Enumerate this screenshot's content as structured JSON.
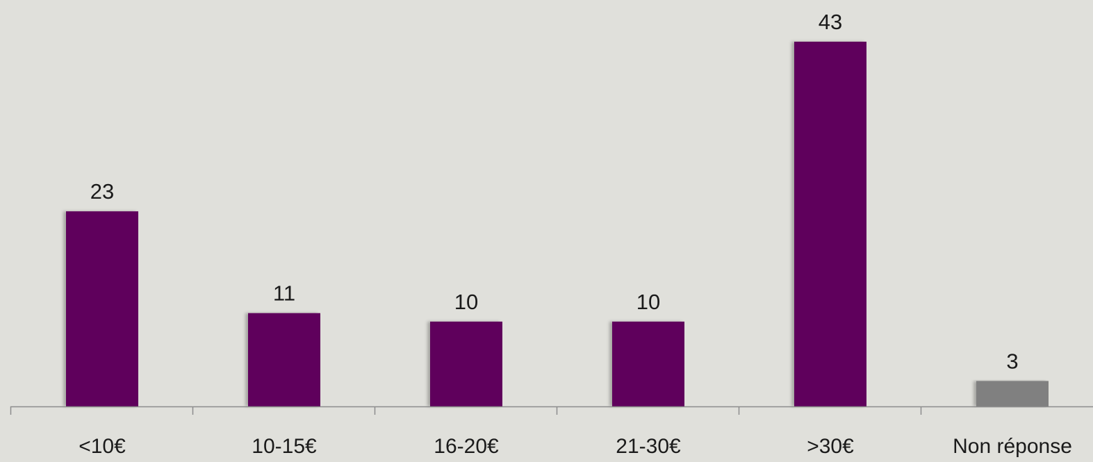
{
  "chart_data": {
    "type": "bar",
    "title": "",
    "xlabel": "",
    "ylabel": "",
    "categories": [
      "<10€",
      "10-15€",
      "16-20€",
      "21-30€",
      ">30€",
      "Non réponse"
    ],
    "values": [
      23,
      11,
      10,
      10,
      43,
      3
    ],
    "ylim": [
      0,
      45
    ],
    "grid": false,
    "legend": "none",
    "colors": {
      "primary_bar": "#5e005c",
      "non_response_bar": "#808080",
      "axis": "#8c8c8c",
      "background": "#e0e0db"
    }
  }
}
